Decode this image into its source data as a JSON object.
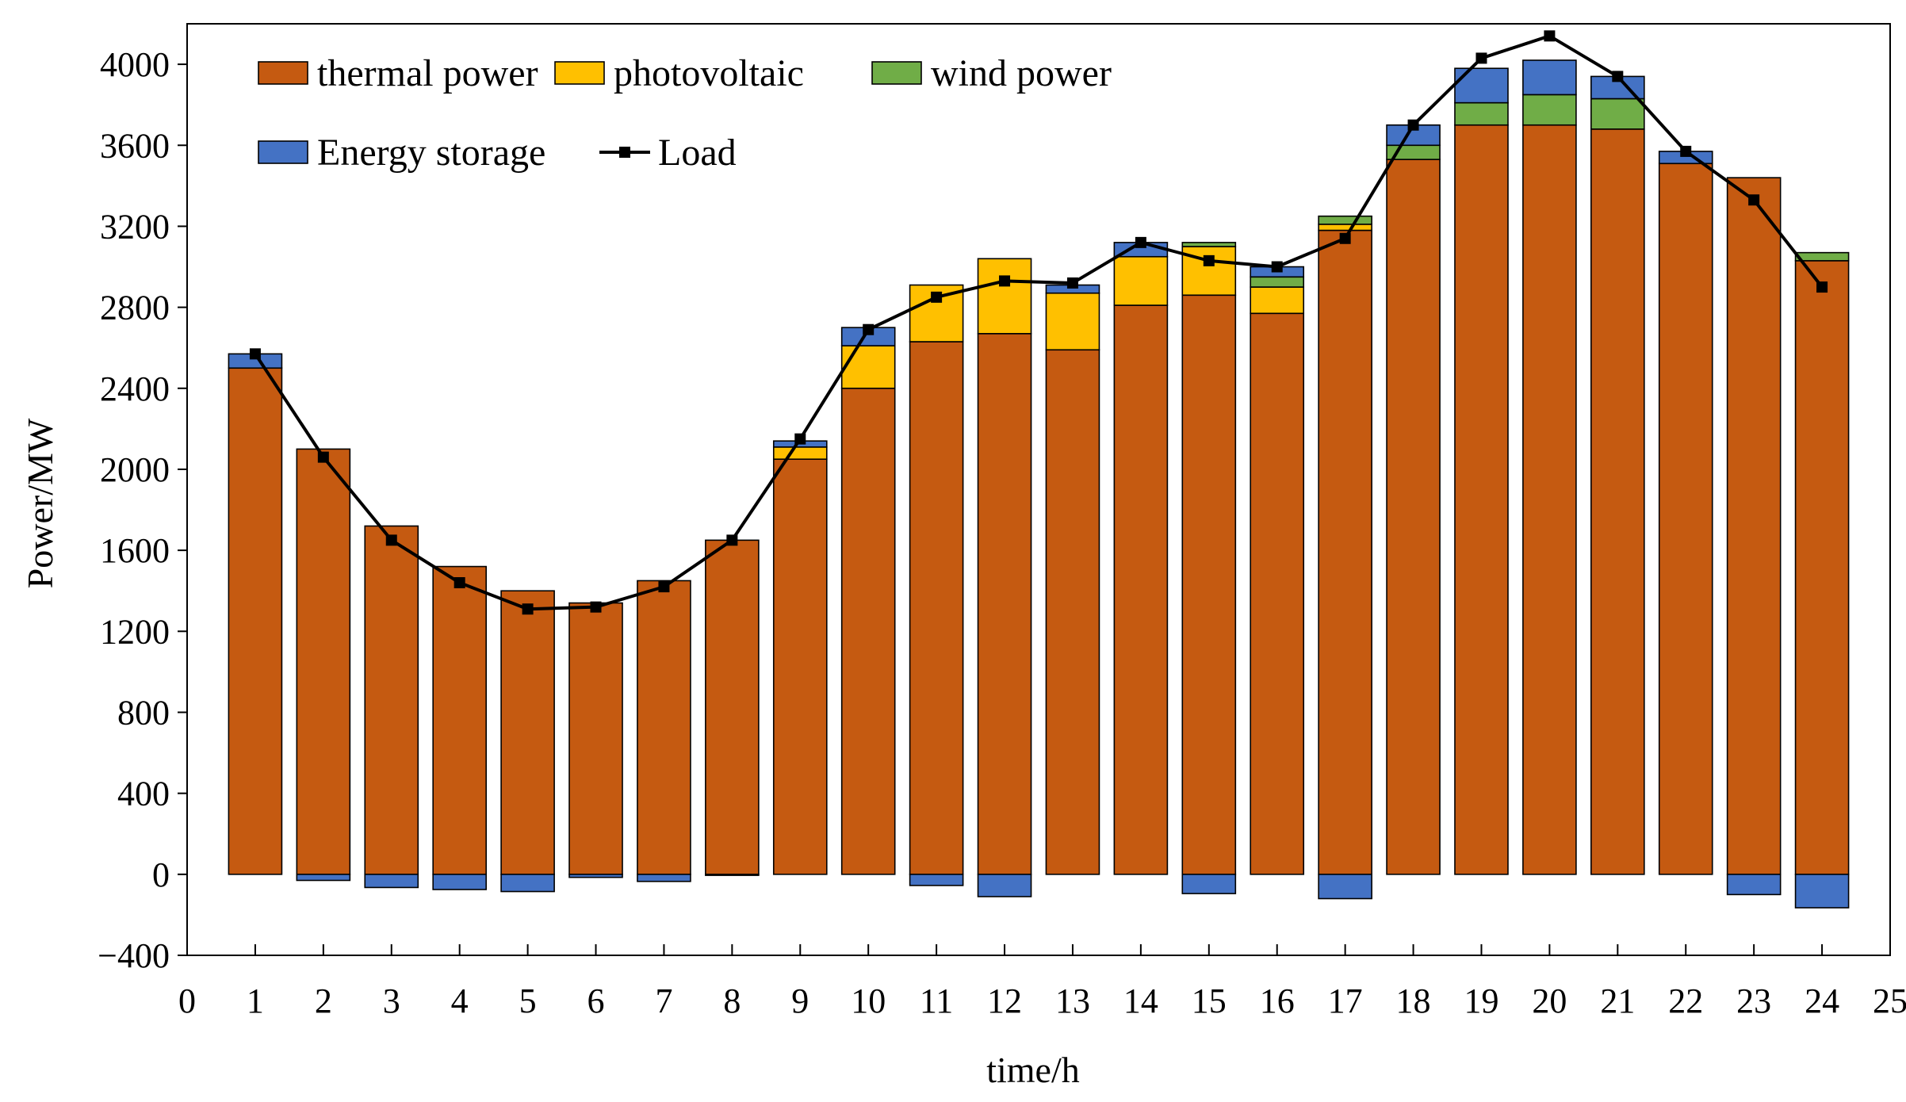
{
  "chart_data": {
    "type": "bar",
    "stacked": true,
    "xlabel": "time/h",
    "ylabel": "Power/MW",
    "xlim": [
      0,
      25
    ],
    "ylim": [
      -400,
      4200
    ],
    "x_ticks": [
      0,
      1,
      2,
      3,
      4,
      5,
      6,
      7,
      8,
      9,
      10,
      11,
      12,
      13,
      14,
      15,
      16,
      17,
      18,
      19,
      20,
      21,
      22,
      23,
      24,
      25
    ],
    "y_ticks": [
      -400,
      0,
      400,
      800,
      1200,
      1600,
      2000,
      2400,
      2800,
      3200,
      3600,
      4000
    ],
    "y_tick_labels": [
      "−400",
      "0",
      "400",
      "800",
      "1200",
      "1600",
      "2000",
      "2400",
      "2800",
      "3200",
      "3600",
      "4000"
    ],
    "categories": [
      1,
      2,
      3,
      4,
      5,
      6,
      7,
      8,
      9,
      10,
      11,
      12,
      13,
      14,
      15,
      16,
      17,
      18,
      19,
      20,
      21,
      22,
      23,
      24
    ],
    "series": [
      {
        "name": "thermal power",
        "kind": "bar",
        "color": "#C55A11",
        "values": [
          2500,
          2100,
          1720,
          1520,
          1400,
          1340,
          1450,
          1650,
          2050,
          2400,
          2630,
          2670,
          2590,
          2810,
          2860,
          2770,
          3180,
          3530,
          3700,
          3700,
          3680,
          3510,
          3440,
          3030
        ]
      },
      {
        "name": "photovoltaic",
        "kind": "bar",
        "color": "#FFC000",
        "values": [
          0,
          0,
          0,
          0,
          0,
          0,
          0,
          0,
          60,
          210,
          280,
          370,
          280,
          240,
          240,
          130,
          30,
          0,
          0,
          0,
          0,
          0,
          0,
          0
        ]
      },
      {
        "name": "wind power",
        "kind": "bar",
        "color": "#70AD47",
        "values": [
          0,
          0,
          0,
          0,
          0,
          0,
          0,
          0,
          0,
          0,
          0,
          0,
          0,
          0,
          20,
          50,
          40,
          70,
          110,
          150,
          150,
          0,
          0,
          40
        ]
      },
      {
        "name": "Energy storage",
        "kind": "bar",
        "color": "#4472C4",
        "values": [
          70,
          -30,
          -65,
          -75,
          -85,
          -15,
          -35,
          -5,
          30,
          90,
          -55,
          -110,
          40,
          70,
          -95,
          50,
          -120,
          100,
          170,
          170,
          110,
          60,
          -100,
          -165
        ]
      },
      {
        "name": "Load",
        "kind": "line",
        "color": "#000000",
        "values": [
          2570,
          2060,
          1650,
          1440,
          1310,
          1320,
          1420,
          1650,
          2150,
          2690,
          2850,
          2930,
          2920,
          3120,
          3030,
          3000,
          3140,
          3700,
          4030,
          4140,
          3940,
          3570,
          3330,
          2900
        ]
      }
    ],
    "legend": {
      "placement": "top-left",
      "rows": [
        [
          "thermal power",
          "photovoltaic",
          "wind power"
        ],
        [
          "Energy storage",
          "Load"
        ]
      ]
    }
  }
}
